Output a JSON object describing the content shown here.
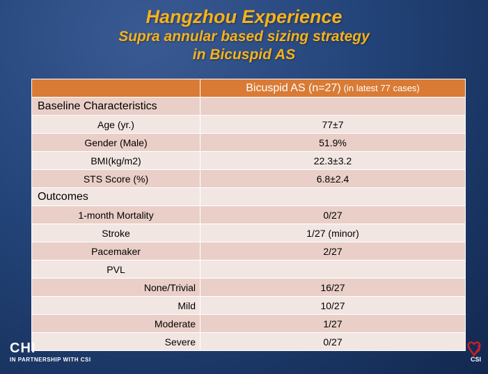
{
  "title": {
    "main": "Hangzhou Experience",
    "line2": "Supra annular based sizing strategy",
    "line3": "in Bicuspid AS"
  },
  "table": {
    "header_col1": "",
    "header_main": "Bicuspid AS (n=27)",
    "header_note": "(in latest 77 cases)",
    "rows": [
      {
        "label": "Baseline Characteristics",
        "value": "",
        "kind": "section"
      },
      {
        "label": "Age (yr.)",
        "value": "77±7",
        "kind": "item"
      },
      {
        "label": "Gender (Male)",
        "value": "51.9%",
        "kind": "item"
      },
      {
        "label": "BMI(kg/m2)",
        "value": "22.3±3.2",
        "kind": "item"
      },
      {
        "label": "STS Score (%)",
        "value": "6.8±2.4",
        "kind": "item"
      },
      {
        "label": "Outcomes",
        "value": "",
        "kind": "section"
      },
      {
        "label": "1-month Mortality",
        "value": "0/27",
        "kind": "item"
      },
      {
        "label": "Stroke",
        "value": "1/27 (minor)",
        "kind": "item"
      },
      {
        "label": "Pacemaker",
        "value": "2/27",
        "kind": "item"
      },
      {
        "label": "PVL",
        "value": "",
        "kind": "item"
      },
      {
        "label": "None/Trivial",
        "value": "16/27",
        "kind": "sub"
      },
      {
        "label": "Mild",
        "value": "10/27",
        "kind": "sub"
      },
      {
        "label": "Moderate",
        "value": "1/27",
        "kind": "sub"
      },
      {
        "label": "Severe",
        "value": "0/27",
        "kind": "sub"
      }
    ]
  },
  "footer": {
    "left_logo": "CHI",
    "left_partner": "IN PARTNERSHIP WITH CSI",
    "right_logo": "CSI"
  },
  "colors": {
    "title": "#f7b21b",
    "header_bg": "#d97b35",
    "row_dark": "#e9cfc8",
    "row_light": "#f2e6e3",
    "background": "#234479"
  }
}
